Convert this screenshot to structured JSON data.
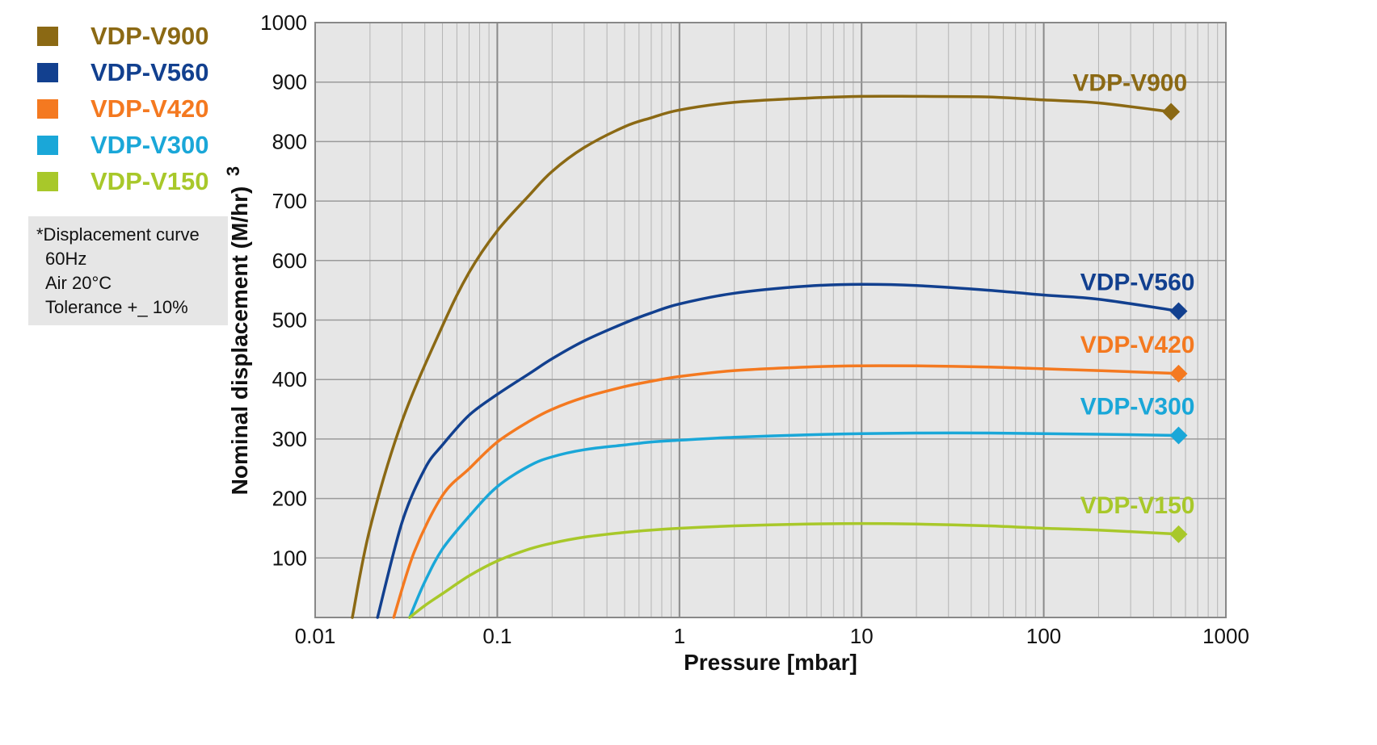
{
  "legend": {
    "items": [
      {
        "label": "VDP-V900",
        "color": "#8b6914"
      },
      {
        "label": "VDP-V560",
        "color": "#12408f"
      },
      {
        "label": "VDP-V420",
        "color": "#f47920"
      },
      {
        "label": "VDP-V300",
        "color": "#1aa7d8"
      },
      {
        "label": "VDP-V150",
        "color": "#a8c82a"
      }
    ]
  },
  "note": {
    "lines": [
      "*Displacement curve",
      "60Hz",
      "Air 20°C",
      "Tolerance +_ 10%"
    ]
  },
  "chart_data": {
    "type": "line",
    "title": "",
    "xlabel": "Pressure [mbar]",
    "ylabel": "Nominal displacement (M/hr)",
    "ylabel_superscript": "3",
    "x_scale": "log",
    "xlim": [
      0.01,
      1000
    ],
    "ylim": [
      0,
      1000
    ],
    "x_ticks": [
      "0.01",
      "0.1",
      "1",
      "10",
      "100",
      "1000"
    ],
    "y_ticks": [
      "100",
      "200",
      "300",
      "400",
      "500",
      "600",
      "700",
      "800",
      "900",
      "1000"
    ],
    "grid": true,
    "legend_position": "top-left, outside plot",
    "series": [
      {
        "name": "VDP-V900",
        "color": "#8b6914",
        "x": [
          0.016,
          0.02,
          0.03,
          0.05,
          0.07,
          0.1,
          0.15,
          0.2,
          0.3,
          0.5,
          0.7,
          1,
          2,
          5,
          10,
          20,
          50,
          100,
          200,
          500
        ],
        "y": [
          0,
          150,
          330,
          490,
          580,
          650,
          710,
          750,
          790,
          825,
          840,
          853,
          866,
          873,
          876,
          876,
          875,
          870,
          865,
          850
        ]
      },
      {
        "name": "VDP-V560",
        "color": "#12408f",
        "x": [
          0.022,
          0.03,
          0.04,
          0.05,
          0.07,
          0.1,
          0.15,
          0.2,
          0.3,
          0.5,
          0.7,
          1,
          2,
          5,
          10,
          20,
          50,
          100,
          200,
          550
        ],
        "y": [
          0,
          160,
          250,
          290,
          340,
          375,
          410,
          435,
          465,
          495,
          512,
          527,
          545,
          557,
          560,
          558,
          550,
          542,
          535,
          515
        ]
      },
      {
        "name": "VDP-V420",
        "color": "#f47920",
        "x": [
          0.027,
          0.035,
          0.05,
          0.07,
          0.1,
          0.15,
          0.2,
          0.3,
          0.5,
          0.7,
          1,
          2,
          5,
          10,
          20,
          50,
          100,
          200,
          550
        ],
        "y": [
          0,
          110,
          205,
          250,
          295,
          330,
          350,
          370,
          388,
          397,
          405,
          415,
          421,
          423,
          423,
          421,
          418,
          415,
          410
        ]
      },
      {
        "name": "VDP-V300",
        "color": "#1aa7d8",
        "x": [
          0.033,
          0.04,
          0.05,
          0.07,
          0.1,
          0.15,
          0.2,
          0.3,
          0.5,
          0.7,
          1,
          2,
          5,
          10,
          20,
          50,
          100,
          200,
          550
        ],
        "y": [
          0,
          60,
          115,
          170,
          220,
          255,
          270,
          282,
          290,
          295,
          298,
          303,
          307,
          309,
          310,
          310,
          309,
          308,
          306
        ]
      },
      {
        "name": "VDP-V150",
        "color": "#a8c82a",
        "x": [
          0.033,
          0.04,
          0.05,
          0.07,
          0.1,
          0.15,
          0.2,
          0.3,
          0.5,
          0.7,
          1,
          2,
          5,
          10,
          20,
          50,
          100,
          200,
          550
        ],
        "y": [
          0,
          20,
          40,
          70,
          95,
          115,
          125,
          135,
          143,
          147,
          150,
          154,
          157,
          158,
          157,
          154,
          150,
          147,
          140
        ]
      }
    ],
    "end_markers": [
      {
        "series": "VDP-V900",
        "x": 500,
        "y": 850,
        "label": "VDP-V900"
      },
      {
        "series": "VDP-V560",
        "x": 550,
        "y": 515,
        "label": "VDP-V560"
      },
      {
        "series": "VDP-V420",
        "x": 550,
        "y": 410,
        "label": "VDP-V420"
      },
      {
        "series": "VDP-V300",
        "x": 550,
        "y": 306,
        "label": "VDP-V300"
      },
      {
        "series": "VDP-V150",
        "x": 550,
        "y": 140,
        "label": "VDP-V150"
      }
    ]
  }
}
